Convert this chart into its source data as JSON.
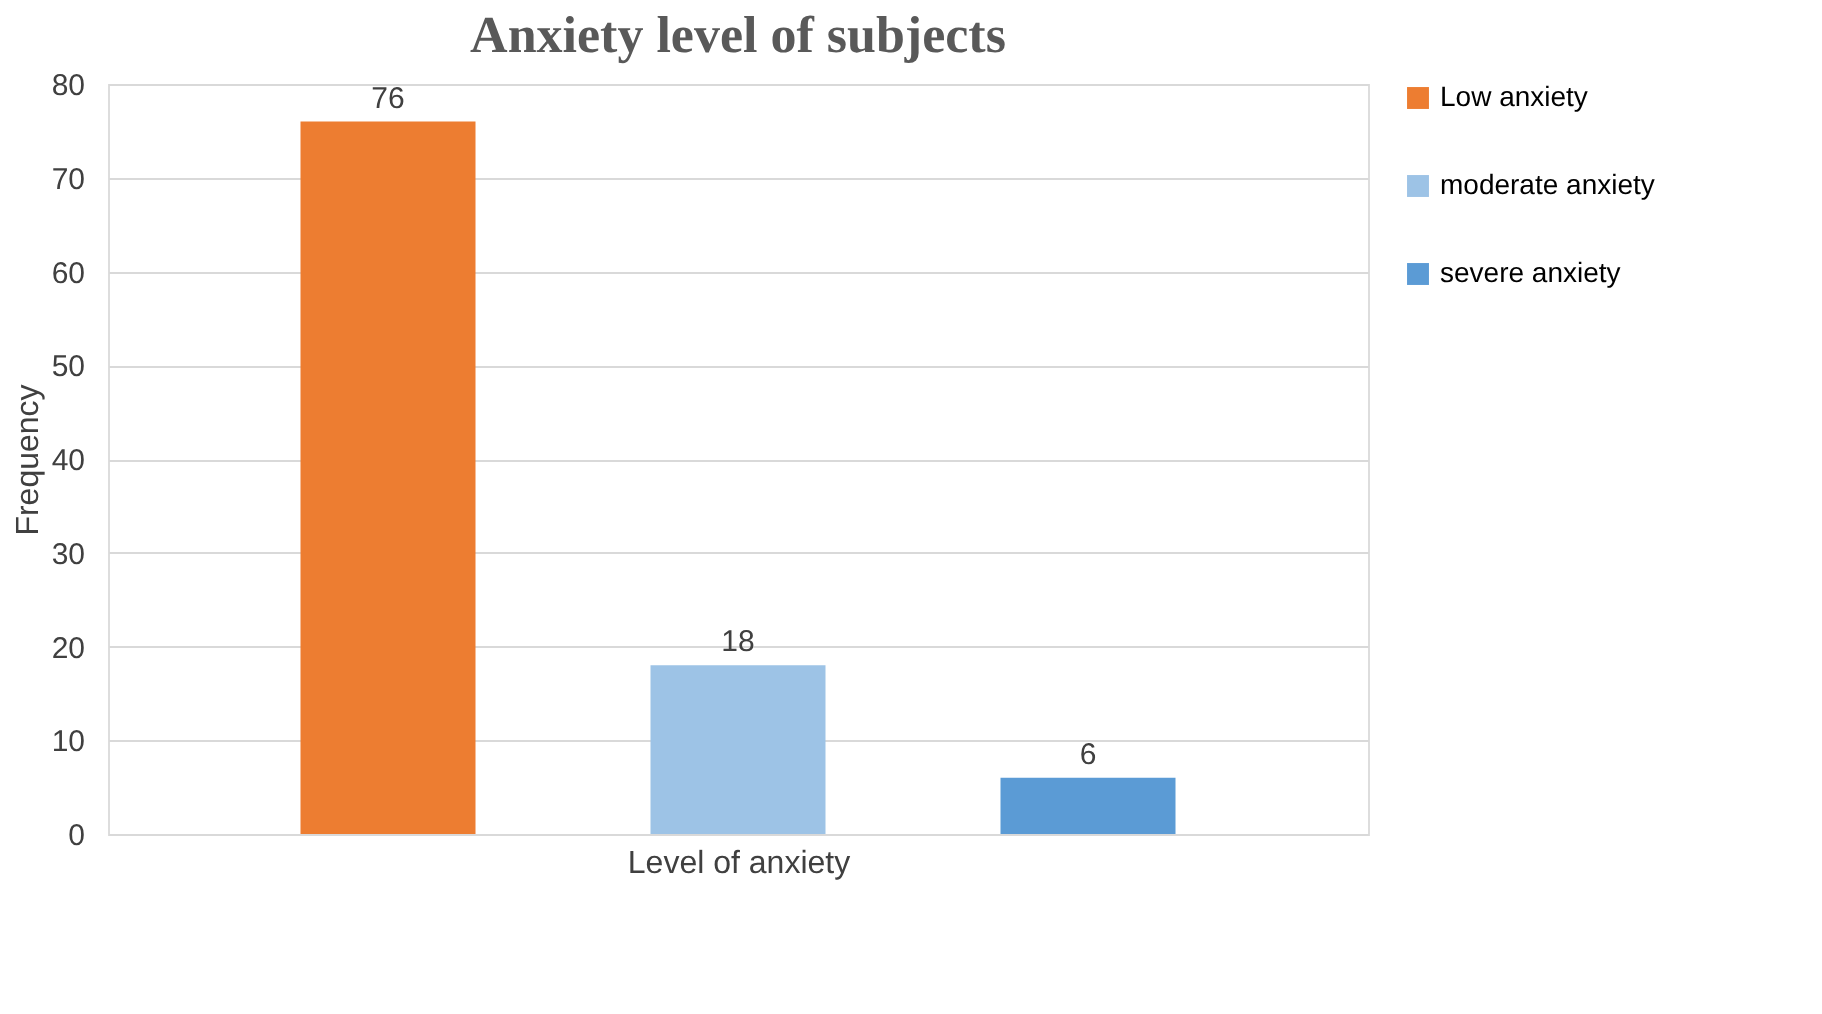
{
  "chart_data": {
    "type": "bar",
    "title": "Anxiety level of subjects",
    "xlabel": "Level of anxiety",
    "ylabel": "Frequency",
    "categories": [
      null
    ],
    "series": [
      {
        "name": "Low anxiety",
        "color": "#ed7d31",
        "values": [
          76
        ]
      },
      {
        "name": "moderate anxiety",
        "color": "#9dc3e6",
        "values": [
          18
        ]
      },
      {
        "name": "severe anxiety",
        "color": "#5b9bd5",
        "values": [
          6
        ]
      }
    ],
    "ylim": [
      0,
      80
    ],
    "yticks": [
      0,
      10,
      20,
      30,
      40,
      50,
      60,
      70,
      80
    ],
    "grid": "y",
    "legend": "right",
    "data_labels": true
  }
}
